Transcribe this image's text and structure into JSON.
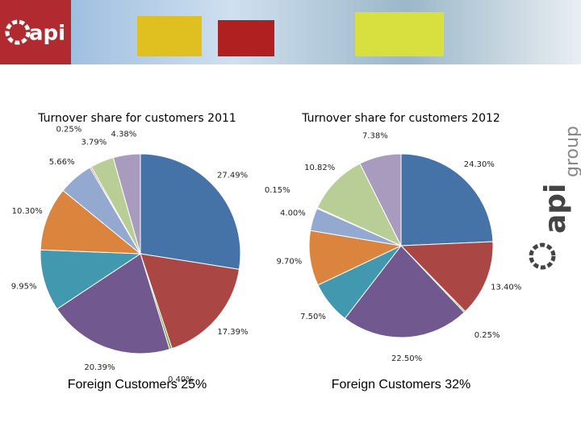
{
  "header": {
    "logo": "api"
  },
  "side_logo": {
    "name": "api",
    "suffix": "group"
  },
  "chart_data": [
    {
      "type": "pie",
      "title": "Turnover share for customers 2011",
      "values": [
        27.49,
        17.39,
        0.4,
        20.39,
        9.95,
        10.3,
        5.66,
        0.25,
        3.79,
        4.38
      ],
      "value_labels": [
        "27.49%",
        "17.39%",
        "0.40%",
        "20.39%",
        "9.95%",
        "10.30%",
        "5.66%",
        "0.25%",
        "3.79%",
        "4.38%"
      ],
      "colors": [
        "#4572a7",
        "#aa4643",
        "#89a54e",
        "#71588f",
        "#4198af",
        "#db843d",
        "#93a9cf",
        "#d19392",
        "#b9cd96",
        "#a99bbd"
      ],
      "caption": "Foreign Customers 25%"
    },
    {
      "type": "pie",
      "title": "Turnover share for customers 2012",
      "values": [
        24.3,
        13.4,
        0.25,
        22.5,
        7.5,
        9.7,
        4.0,
        0.15,
        10.82,
        7.38
      ],
      "value_labels": [
        "24.30%",
        "13.40%",
        "0.25%",
        "22.50%",
        "7.50%",
        "9.70%",
        "4.00%",
        "0.15%",
        "10.82%",
        "7.38%"
      ],
      "colors": [
        "#4572a7",
        "#aa4643",
        "#89a54e",
        "#71588f",
        "#4198af",
        "#db843d",
        "#93a9cf",
        "#d19392",
        "#b9cd96",
        "#a99bbd"
      ],
      "caption": "Foreign Customers 32%"
    }
  ]
}
